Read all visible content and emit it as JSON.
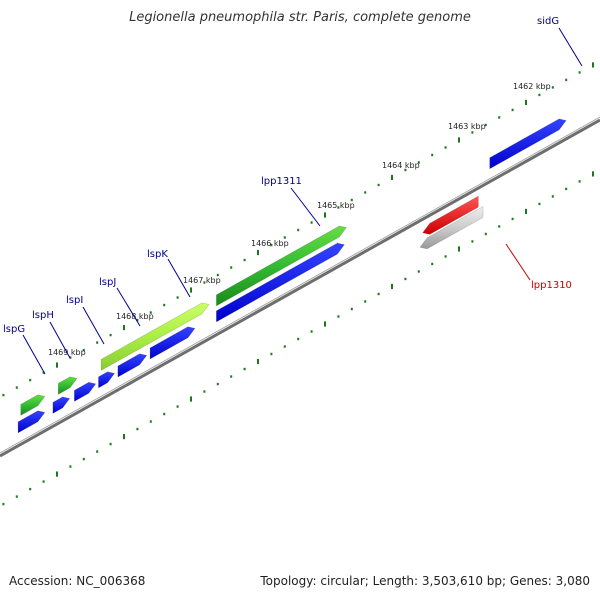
{
  "title": "Legionella pneumophila str. Paris, complete genome",
  "footer": {
    "accession": "Accession: NC_006368",
    "summary": "Topology: circular; Length: 3,503,610 bp; Genes: 3,080"
  },
  "colors": {
    "backbone": "#808080",
    "ticks": "#1a7a1a",
    "forward_cds": "#0000ee",
    "green_gene": "#33bb33",
    "lime_gene": "#aaee44",
    "red_gene": "#ee1111",
    "grey_gene": "#bbbbbb",
    "blue_label": "#00008b",
    "red_label": "#cc0000"
  },
  "kbp_labels": [
    "1462 kbp",
    "1463 kbp",
    "1464 kbp",
    "1465 kbp",
    "1466 kbp",
    "1467 kbp",
    "1468 kbp",
    "1469 kbp"
  ],
  "gene_labels": [
    "sidG",
    "lpp1311",
    "lspK",
    "lspJ",
    "lspI",
    "lspH",
    "lspG",
    "lpp1310"
  ],
  "features": {
    "blue": [
      {
        "start": 1469.82,
        "end": 1469.42
      },
      {
        "start": 1469.3,
        "end": 1469.05
      },
      {
        "start": 1468.98,
        "end": 1468.66
      },
      {
        "start": 1468.62,
        "end": 1468.38
      },
      {
        "start": 1468.33,
        "end": 1467.9
      },
      {
        "start": 1467.85,
        "end": 1467.18
      },
      {
        "start": 1466.86,
        "end": 1464.95
      },
      {
        "start": 1462.78,
        "end": 1461.64
      }
    ],
    "green": [
      {
        "start": 1469.78,
        "end": 1469.42,
        "color": "green_gene"
      },
      {
        "start": 1469.22,
        "end": 1468.94,
        "color": "green_gene"
      },
      {
        "start": 1468.58,
        "end": 1466.97,
        "color": "lime_gene"
      },
      {
        "start": 1466.86,
        "end": 1464.92,
        "color": "green_gene"
      }
    ],
    "reverse": [
      {
        "start": 1463.78,
        "end": 1462.95,
        "color": "red_gene"
      },
      {
        "start": 1463.82,
        "end": 1462.88,
        "color": "grey_gene"
      }
    ]
  }
}
